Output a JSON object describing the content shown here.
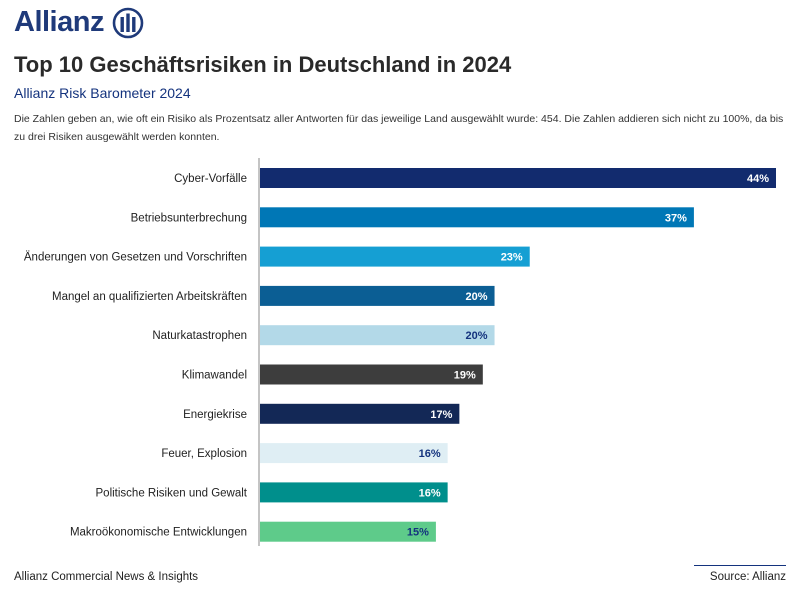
{
  "brand": {
    "name": "Allianz",
    "color": "#1f3a7a"
  },
  "header": {
    "title": "Top 10 Geschäftsrisiken in Deutschland in 2024",
    "subtitle": "Allianz Risk Barometer 2024",
    "description": "Die Zahlen geben an, wie oft ein Risiko als Prozentsatz aller Antworten für das jeweilige Land ausgewählt wurde: 454. Die Zahlen addieren sich nicht zu 100%, da bis zu drei Risiken ausgewählt werden konnten."
  },
  "chart_data": {
    "type": "bar",
    "orientation": "horizontal",
    "title": "Top 10 Geschäftsrisiken in Deutschland in 2024",
    "xlabel": "",
    "ylabel": "",
    "xlim": [
      0,
      44
    ],
    "grid": false,
    "categories": [
      "Cyber-Vorfälle",
      "Betriebsunterbrechung",
      "Änderungen von Gesetzen und Vorschriften",
      "Mangel an qualifizierten Arbeitskräften",
      "Naturkatastrophen",
      "Klimawandel",
      "Energiekrise",
      "Feuer, Explosion",
      "Politische Risiken und Gewalt",
      "Makroökonomische Entwicklungen"
    ],
    "values": [
      44,
      37,
      23,
      20,
      20,
      19,
      17,
      16,
      16,
      15
    ],
    "value_labels": [
      "44%",
      "37%",
      "23%",
      "20%",
      "20%",
      "19%",
      "17%",
      "16%",
      "16%",
      "15%"
    ],
    "colors": [
      "#122b6e",
      "#0077b6",
      "#159fd3",
      "#0b5e94",
      "#b3d9e8",
      "#3d3d3d",
      "#132856",
      "#dfeef4",
      "#008f8c",
      "#5ecb8a"
    ],
    "label_colors": [
      "#ffffff",
      "#ffffff",
      "#ffffff",
      "#ffffff",
      "#14337e",
      "#ffffff",
      "#ffffff",
      "#14337e",
      "#ffffff",
      "#14337e"
    ]
  },
  "footer": {
    "left": "Allianz Commercial News & Insights",
    "right": "Source: Allianz"
  }
}
